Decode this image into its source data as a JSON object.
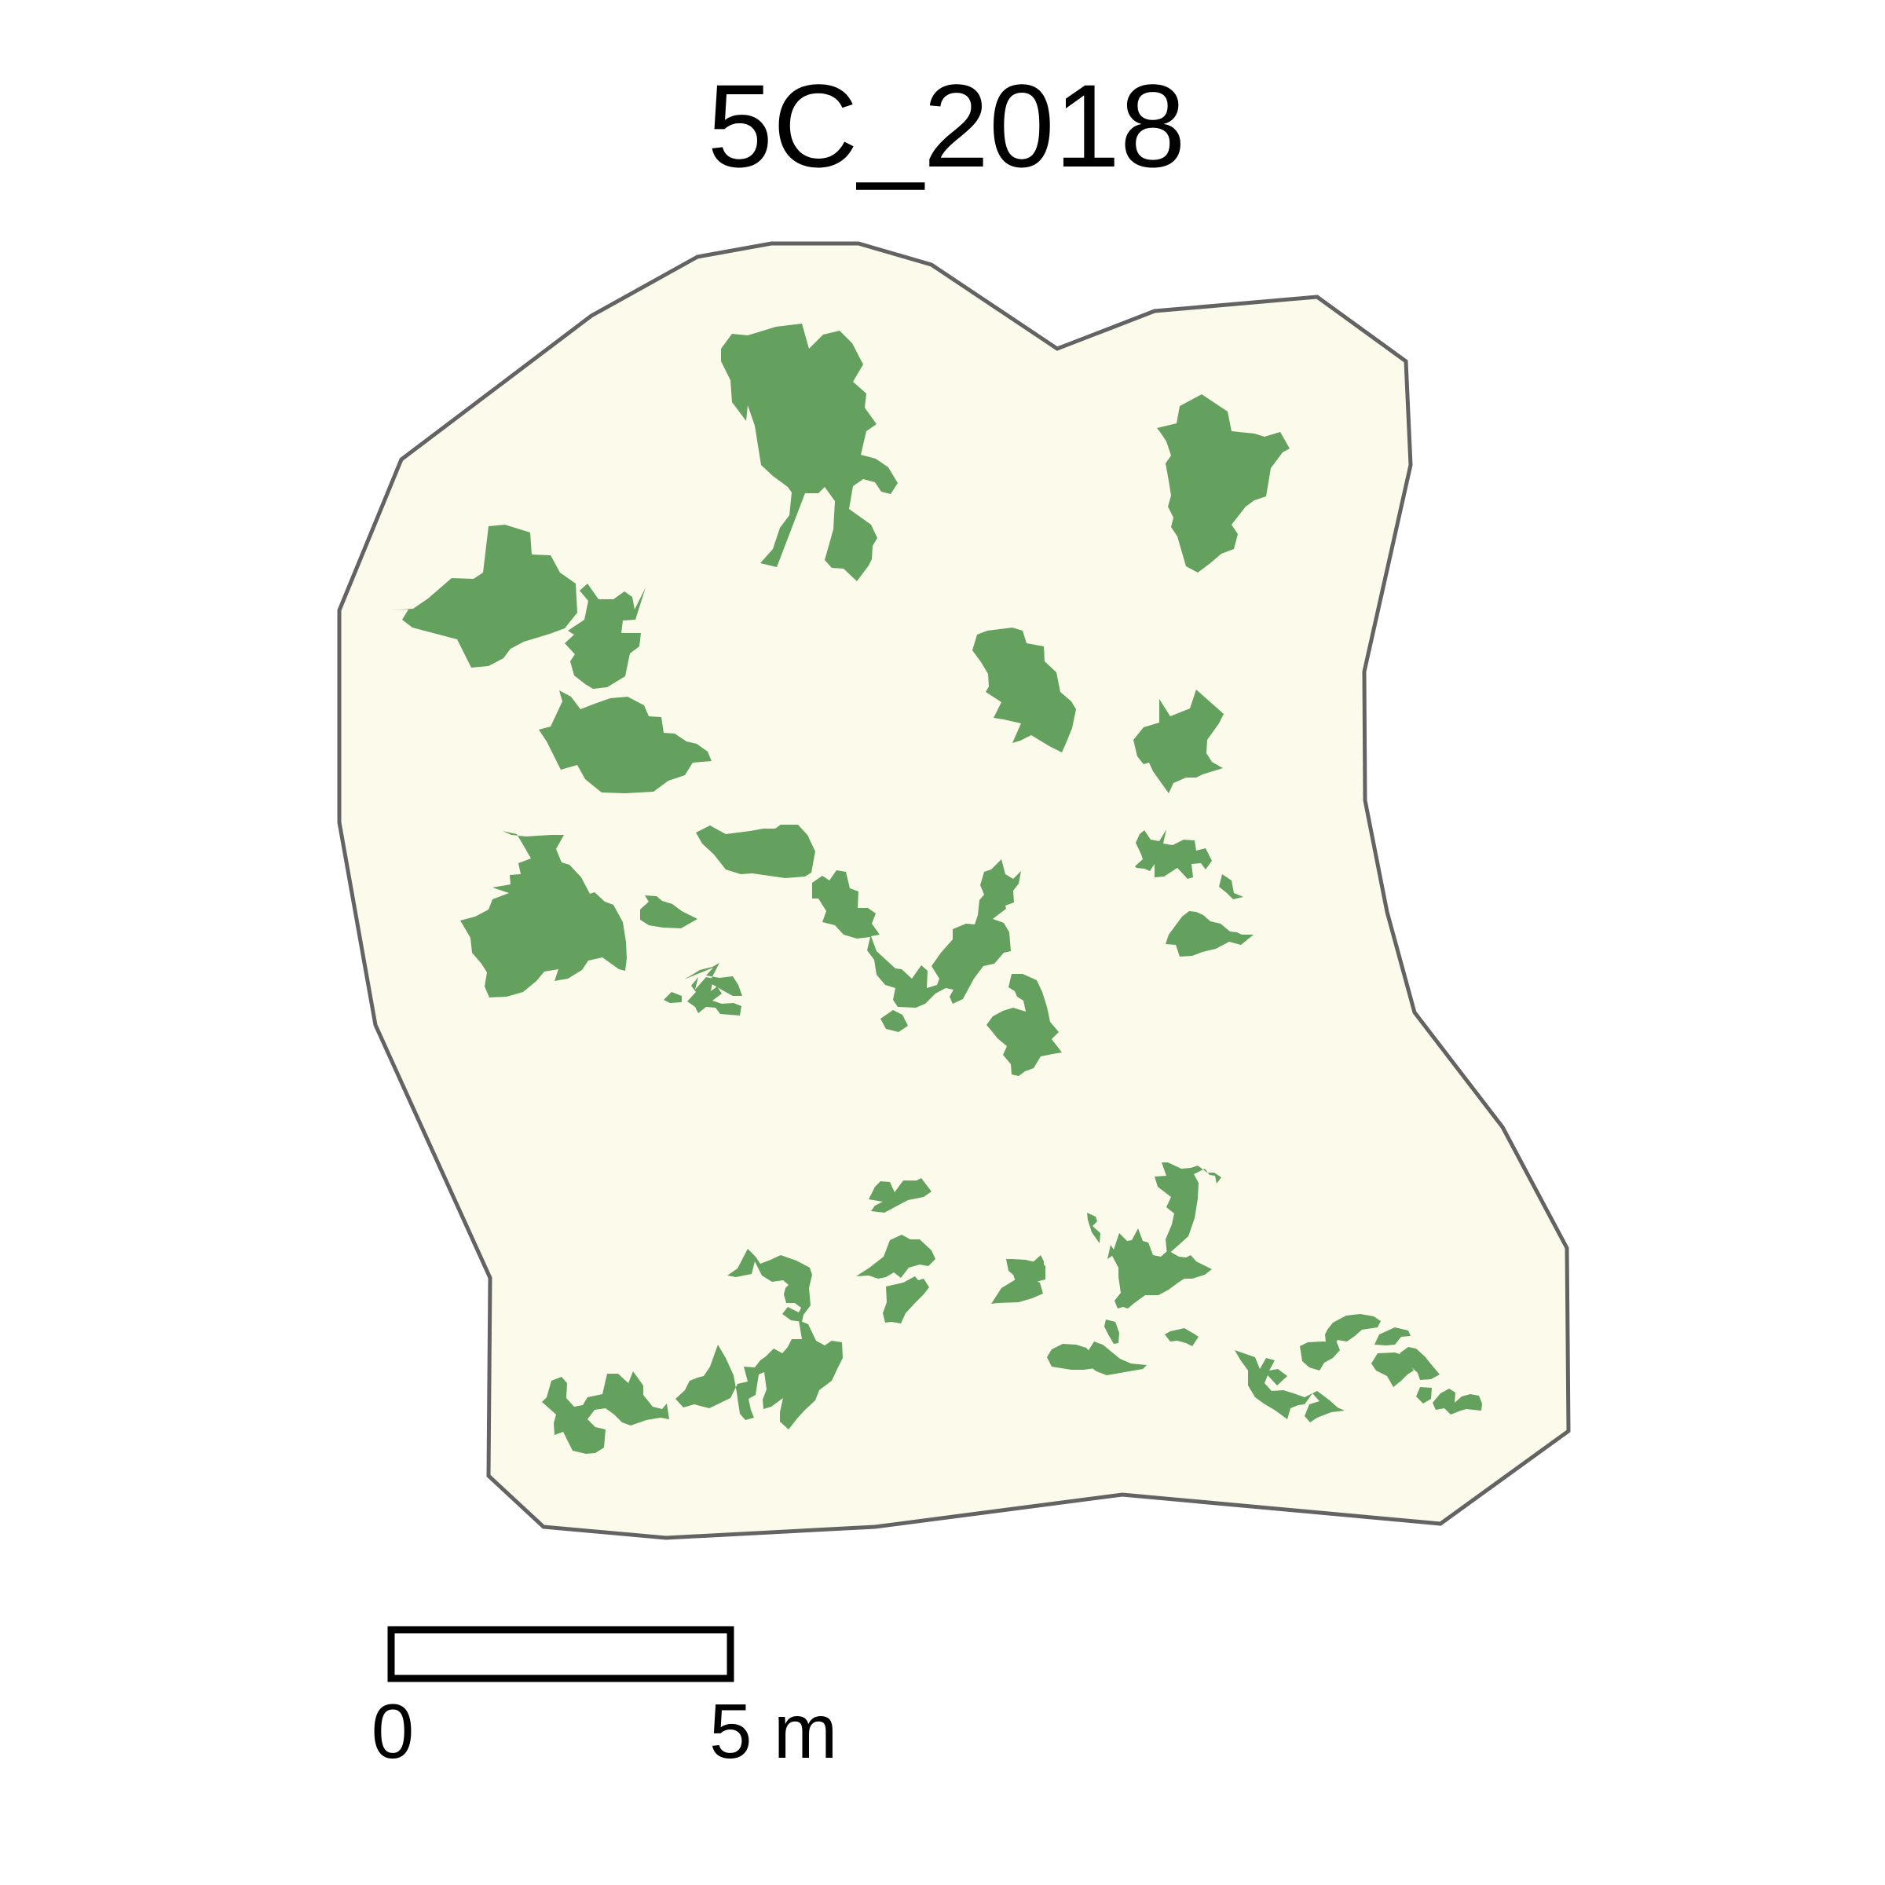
{
  "map": {
    "title": "5C_2018",
    "colors": {
      "plot_fill": "#FCFAEA",
      "plot_border": "#636363",
      "vegetation": "#64A15F",
      "text": "#000000"
    },
    "legend": {
      "scale_bar": {
        "start_label": "0",
        "end_label": "5 m",
        "length_m": 5
      }
    },
    "layers": [
      "plot-boundary",
      "vegetation-patches"
    ]
  }
}
